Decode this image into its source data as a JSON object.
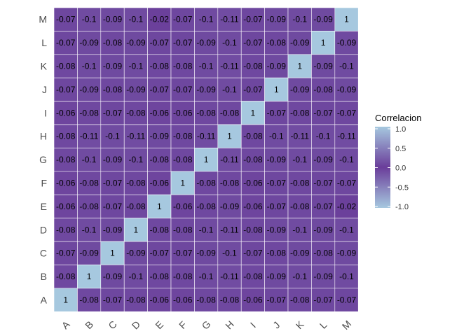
{
  "chart_data": {
    "type": "heatmap",
    "x_categories": [
      "A",
      "B",
      "C",
      "D",
      "E",
      "F",
      "G",
      "H",
      "I",
      "J",
      "K",
      "L",
      "M"
    ],
    "y_categories": [
      "A",
      "B",
      "C",
      "D",
      "E",
      "F",
      "G",
      "H",
      "I",
      "J",
      "K",
      "L",
      "M"
    ],
    "rows": [
      {
        "y": "M",
        "values": [
          "-0.07",
          "-0.1",
          "-0.09",
          "-0.1",
          "-0.02",
          "-0.07",
          "-0.1",
          "-0.11",
          "-0.07",
          "-0.09",
          "-0.1",
          "-0.09",
          "1"
        ]
      },
      {
        "y": "L",
        "values": [
          "-0.07",
          "-0.09",
          "-0.08",
          "-0.09",
          "-0.07",
          "-0.07",
          "-0.09",
          "-0.1",
          "-0.07",
          "-0.08",
          "-0.09",
          "1",
          "-0.09"
        ]
      },
      {
        "y": "K",
        "values": [
          "-0.08",
          "-0.1",
          "-0.09",
          "-0.1",
          "-0.08",
          "-0.08",
          "-0.1",
          "-0.11",
          "-0.08",
          "-0.09",
          "1",
          "-0.09",
          "-0.1"
        ]
      },
      {
        "y": "J",
        "values": [
          "-0.07",
          "-0.09",
          "-0.08",
          "-0.09",
          "-0.07",
          "-0.07",
          "-0.09",
          "-0.1",
          "-0.07",
          "1",
          "-0.09",
          "-0.08",
          "-0.09"
        ]
      },
      {
        "y": "I",
        "values": [
          "-0.06",
          "-0.08",
          "-0.07",
          "-0.08",
          "-0.06",
          "-0.06",
          "-0.08",
          "-0.08",
          "1",
          "-0.07",
          "-0.08",
          "-0.07",
          "-0.07"
        ]
      },
      {
        "y": "H",
        "values": [
          "-0.08",
          "-0.11",
          "-0.1",
          "-0.11",
          "-0.09",
          "-0.08",
          "-0.11",
          "1",
          "-0.08",
          "-0.1",
          "-0.11",
          "-0.1",
          "-0.11"
        ]
      },
      {
        "y": "G",
        "values": [
          "-0.08",
          "-0.1",
          "-0.09",
          "-0.1",
          "-0.08",
          "-0.08",
          "1",
          "-0.11",
          "-0.08",
          "-0.09",
          "-0.1",
          "-0.09",
          "-0.1"
        ]
      },
      {
        "y": "F",
        "values": [
          "-0.06",
          "-0.08",
          "-0.07",
          "-0.08",
          "-0.06",
          "1",
          "-0.08",
          "-0.08",
          "-0.06",
          "-0.07",
          "-0.08",
          "-0.07",
          "-0.07"
        ]
      },
      {
        "y": "E",
        "values": [
          "-0.06",
          "-0.08",
          "-0.07",
          "-0.08",
          "1",
          "-0.06",
          "-0.08",
          "-0.09",
          "-0.06",
          "-0.07",
          "-0.08",
          "-0.07",
          "-0.02"
        ]
      },
      {
        "y": "D",
        "values": [
          "-0.08",
          "-0.1",
          "-0.09",
          "1",
          "-0.08",
          "-0.08",
          "-0.1",
          "-0.11",
          "-0.08",
          "-0.09",
          "-0.1",
          "-0.09",
          "-0.1"
        ]
      },
      {
        "y": "C",
        "values": [
          "-0.07",
          "-0.09",
          "1",
          "-0.09",
          "-0.07",
          "-0.07",
          "-0.09",
          "-0.1",
          "-0.07",
          "-0.08",
          "-0.09",
          "-0.08",
          "-0.09"
        ]
      },
      {
        "y": "B",
        "values": [
          "-0.08",
          "1",
          "-0.09",
          "-0.1",
          "-0.08",
          "-0.08",
          "-0.1",
          "-0.11",
          "-0.08",
          "-0.09",
          "-0.1",
          "-0.09",
          "-0.1"
        ]
      },
      {
        "y": "A",
        "values": [
          "1",
          "-0.08",
          "-0.07",
          "-0.08",
          "-0.06",
          "-0.06",
          "-0.08",
          "-0.08",
          "-0.06",
          "-0.07",
          "-0.08",
          "-0.07",
          "-0.07"
        ]
      }
    ],
    "legend": {
      "title": "Correlacion",
      "ticks": [
        "1.0",
        "0.5",
        "0.0",
        "-0.5",
        "-1.0"
      ],
      "range": [
        -1,
        1
      ],
      "position": "right"
    },
    "colors": {
      "positive": "#a6c8df",
      "mid": "#6a3d9a",
      "negative": "#a6c8df",
      "cell_border": "#ffffff"
    },
    "grid": false
  }
}
